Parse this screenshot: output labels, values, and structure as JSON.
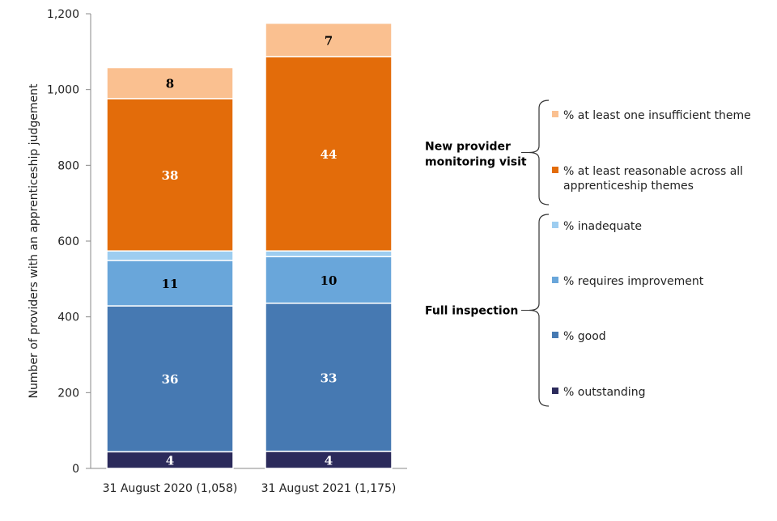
{
  "chart_data": {
    "type": "bar",
    "stacked": true,
    "ylabel": "Number of providers with an apprenticeship judgement",
    "ylim": [
      0,
      1200
    ],
    "yticks": [
      "0",
      "200",
      "400",
      "600",
      "800",
      "1,000",
      "1,200"
    ],
    "ytick_values": [
      0,
      200,
      400,
      600,
      800,
      1000,
      1200
    ],
    "categories": [
      "31 August 2020 (1,058)",
      "31 August 2021 (1,175)"
    ],
    "series": [
      {
        "name": "% outstanding",
        "color": "#2b2a5b",
        "label_color": "#ffffff",
        "values": [
          44,
          45
        ],
        "labels": [
          "4",
          "4"
        ]
      },
      {
        "name": "% good",
        "color": "#4679b2",
        "label_color": "#ffffff",
        "values": [
          385,
          391
        ],
        "labels": [
          "36",
          "33"
        ]
      },
      {
        "name": "% requires improvement",
        "color": "#69a6da",
        "label_color": "#000000",
        "values": [
          120,
          123
        ],
        "labels": [
          "11",
          "10"
        ]
      },
      {
        "name": "% inadequate",
        "color": "#9dcdf0",
        "label_color": "#000000",
        "values": [
          25,
          15
        ],
        "labels": [
          "",
          ""
        ]
      },
      {
        "name": "% at least reasonable across all apprenticeship themes",
        "color": "#e36c0a",
        "label_color": "#ffffff",
        "values": [
          402,
          513
        ],
        "labels": [
          "38",
          "44"
        ]
      },
      {
        "name": "% at least one insufficient theme",
        "color": "#fac090",
        "label_color": "#000000",
        "values": [
          82,
          88
        ],
        "labels": [
          "8",
          "7"
        ]
      }
    ],
    "legend_groups": [
      {
        "title": [
          "New provider",
          "monitoring visit"
        ],
        "items": [
          5,
          4
        ]
      },
      {
        "title": [
          "Full inspection"
        ],
        "items": [
          3,
          2,
          1,
          0
        ]
      }
    ],
    "legend_placement": "right"
  }
}
